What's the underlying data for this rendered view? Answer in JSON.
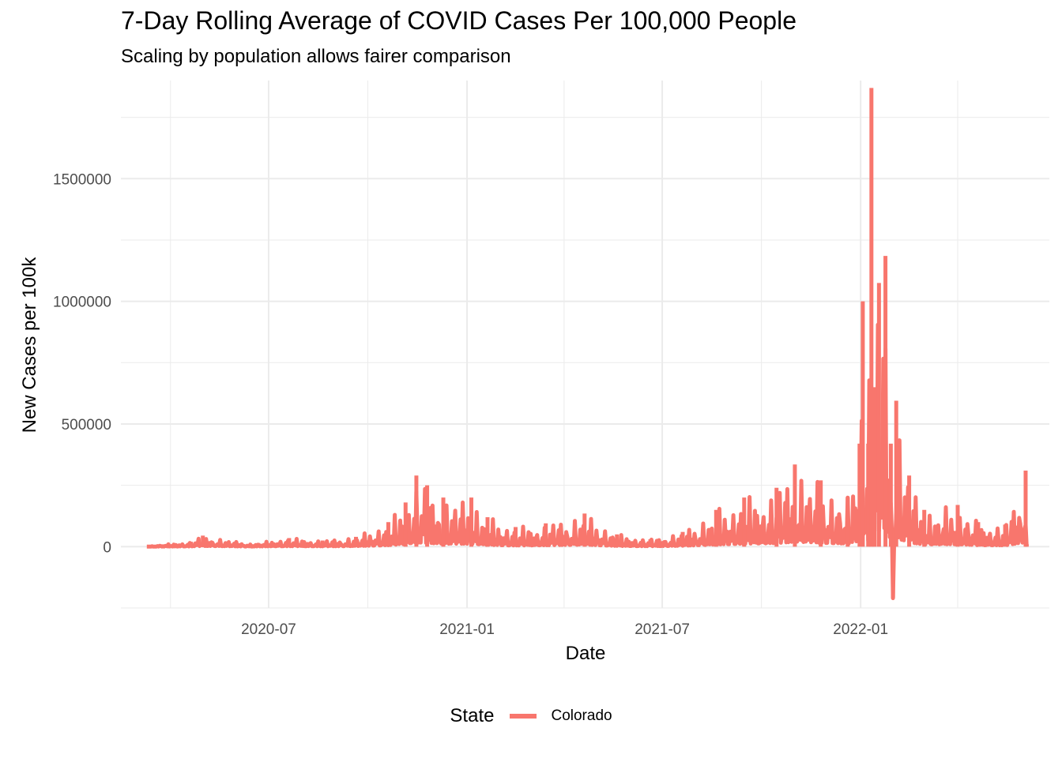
{
  "chart_data": {
    "type": "line",
    "title": "7-Day Rolling Average of COVID Cases Per 100,000 People",
    "subtitle": "Scaling by population allows fairer comparison",
    "xlabel": "Date",
    "ylabel": "New Cases per 100k",
    "x_tick_labels": [
      "2020-07",
      "2021-01",
      "2021-07",
      "2022-01"
    ],
    "y_tick_labels": [
      "0",
      "500000",
      "1000000",
      "1500000"
    ],
    "y_ticks": [
      0,
      500000,
      1000000,
      1500000
    ],
    "ylim": [
      -250000,
      1900000
    ],
    "xlim": [
      "2020-02-15",
      "2022-06-25"
    ],
    "grid": true,
    "legend": {
      "title": "State",
      "position": "bottom"
    },
    "series": [
      {
        "name": "Colorado",
        "color": "#F8766D",
        "peak_points": [
          {
            "x": "2020-03-10",
            "y": 0
          },
          {
            "x": "2020-04-20",
            "y": 20000
          },
          {
            "x": "2020-05-01",
            "y": 45000
          },
          {
            "x": "2020-06-15",
            "y": 10000
          },
          {
            "x": "2020-07-20",
            "y": 35000
          },
          {
            "x": "2020-08-20",
            "y": 25000
          },
          {
            "x": "2020-09-20",
            "y": 40000
          },
          {
            "x": "2020-10-20",
            "y": 100000
          },
          {
            "x": "2020-11-05",
            "y": 180000
          },
          {
            "x": "2020-11-15",
            "y": 290000
          },
          {
            "x": "2020-11-25",
            "y": 250000
          },
          {
            "x": "2020-12-10",
            "y": 200000
          },
          {
            "x": "2021-01-05",
            "y": 200000
          },
          {
            "x": "2021-01-20",
            "y": 120000
          },
          {
            "x": "2021-02-15",
            "y": 80000
          },
          {
            "x": "2021-03-15",
            "y": 95000
          },
          {
            "x": "2021-04-20",
            "y": 135000
          },
          {
            "x": "2021-05-20",
            "y": 50000
          },
          {
            "x": "2021-06-20",
            "y": 30000
          },
          {
            "x": "2021-07-20",
            "y": 60000
          },
          {
            "x": "2021-08-20",
            "y": 150000
          },
          {
            "x": "2021-09-15",
            "y": 200000
          },
          {
            "x": "2021-10-15",
            "y": 240000
          },
          {
            "x": "2021-11-01",
            "y": 335000
          },
          {
            "x": "2021-11-25",
            "y": 270000
          },
          {
            "x": "2021-12-20",
            "y": 200000
          },
          {
            "x": "2021-12-31",
            "y": 420000
          },
          {
            "x": "2022-01-03",
            "y": 1000000
          },
          {
            "x": "2022-01-08",
            "y": 420000
          },
          {
            "x": "2022-01-11",
            "y": 1870000
          },
          {
            "x": "2022-01-14",
            "y": 650000
          },
          {
            "x": "2022-01-18",
            "y": 1075000
          },
          {
            "x": "2022-01-24",
            "y": 1185000
          },
          {
            "x": "2022-01-29",
            "y": 420000
          },
          {
            "x": "2022-01-31",
            "y": -210000
          },
          {
            "x": "2022-02-03",
            "y": 595000
          },
          {
            "x": "2022-02-15",
            "y": 290000
          },
          {
            "x": "2022-03-01",
            "y": 150000
          },
          {
            "x": "2022-04-01",
            "y": 170000
          },
          {
            "x": "2022-04-20",
            "y": 100000
          },
          {
            "x": "2022-05-15",
            "y": 90000
          },
          {
            "x": "2022-06-03",
            "y": 310000
          },
          {
            "x": "2022-06-04",
            "y": 10000
          }
        ]
      }
    ]
  }
}
